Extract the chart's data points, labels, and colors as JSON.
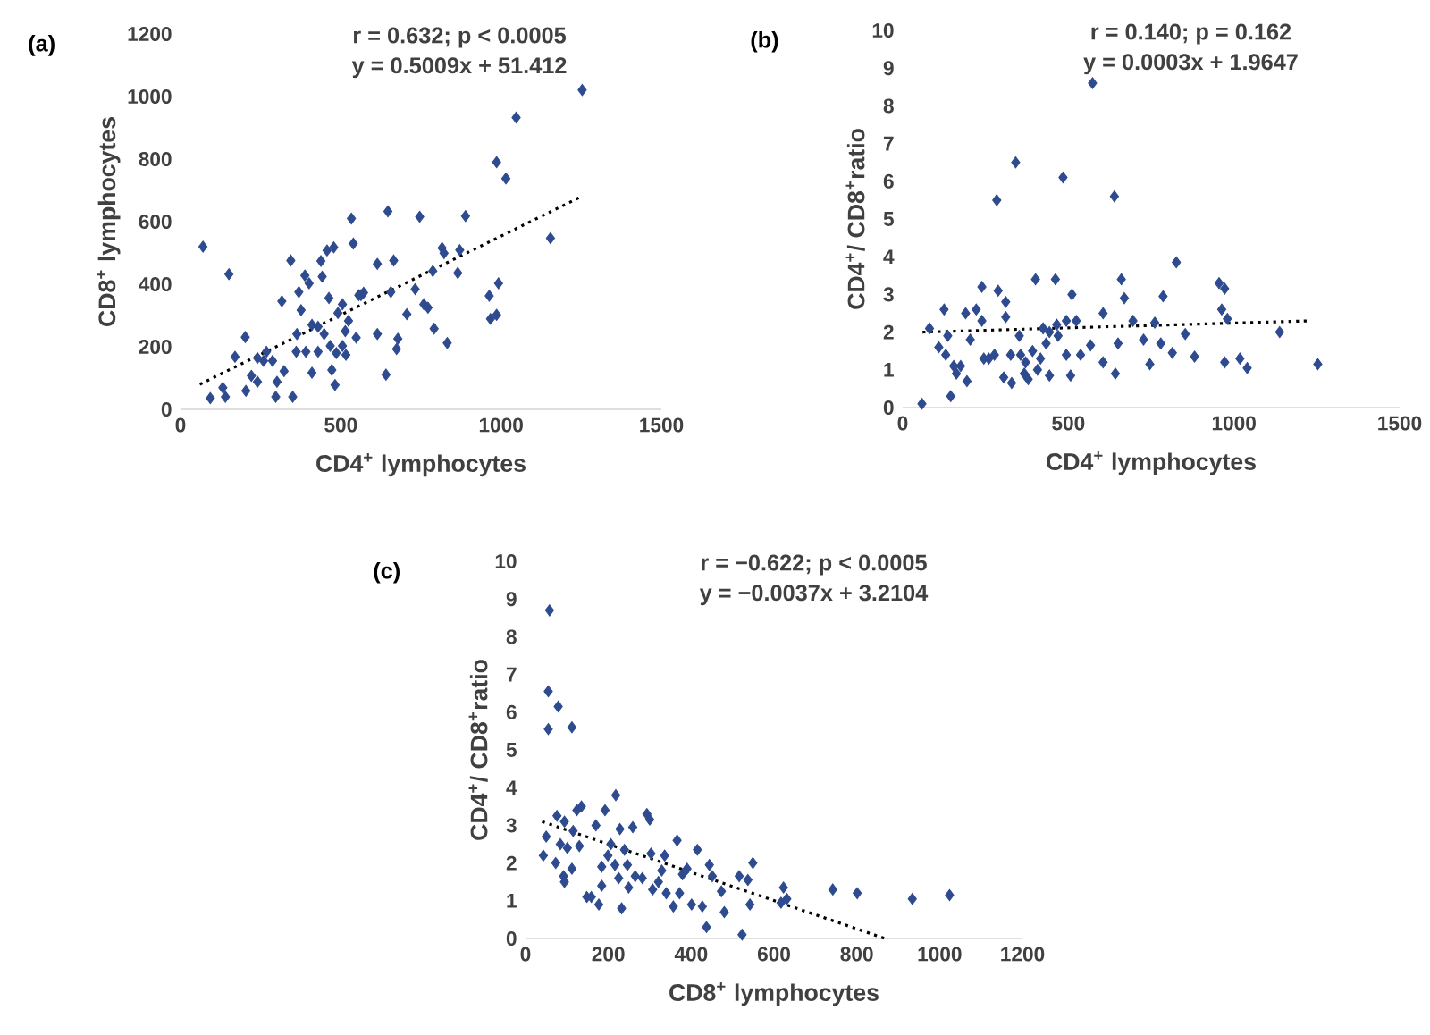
{
  "chart_data": [
    {
      "type": "scatter",
      "title": "(a)",
      "xlabel": "CD4$^{+}$ lymphocytes",
      "ylabel": "CD8$^{+}$ lymphocytes",
      "annotations": [
        "r = 0.632;  p < 0.0005",
        "y = 0.5009x + 51.412"
      ],
      "xlim": [
        0,
        1500
      ],
      "ylim": [
        0,
        1200
      ],
      "xticks": [
        0,
        500,
        1000,
        1500
      ],
      "yticks": [
        0,
        200,
        400,
        600,
        800,
        1000,
        1200
      ],
      "marker": "diamond",
      "series": [
        {
          "color": "#2f4b8f",
          "x": [
            70,
            151,
            93,
            132,
            140,
            170,
            202,
            204,
            221,
            240,
            259,
            268,
            297,
            301,
            316,
            323,
            344,
            350,
            361,
            369,
            376,
            388,
            401,
            410,
            429,
            438,
            442,
            457,
            463,
            478,
            482,
            472,
            491,
            505,
            516,
            533,
            539,
            548,
            556,
            571,
            614,
            614,
            641,
            647,
            656,
            665,
            674,
            678,
            706,
            732,
            746,
            759,
            772,
            787,
            791,
            832,
            816,
            822,
            865,
            871,
            889,
            963,
            967,
            986,
            992,
            986,
            1015,
            1047,
            1154,
            1253,
            410,
            448,
            467,
            486,
            505,
            514,
            429,
            391,
            363,
            240,
            287,
            524,
            563
          ],
          "values": [
            520,
            432,
            36,
            69,
            40,
            168,
            231,
            59,
            107,
            88,
            155,
            184,
            40,
            88,
            346,
            122,
            476,
            40,
            184,
            375,
            317,
            428,
            403,
            117,
            264,
            474,
            424,
            508,
            356,
            518,
            78,
            126,
            308,
            336,
            174,
            610,
            530,
            229,
            365,
            373,
            241,
            465,
            111,
            633,
            375,
            476,
            193,
            226,
            304,
            384,
            616,
            336,
            325,
            442,
            258,
            212,
            516,
            499,
            436,
            509,
            618,
            363,
            289,
            302,
            403,
            790,
            738,
            933,
            547,
            1021,
            270,
            241,
            203,
            180,
            203,
            250,
            184,
            184,
            241,
            164,
            155,
            283,
            365
          ]
        },
        {
          "type": "line",
          "color": "#000000",
          "line_style": "dotted",
          "marker": "none",
          "x": [
            60,
            1250
          ],
          "values": [
            80,
            680
          ]
        }
      ]
    },
    {
      "type": "scatter",
      "title": "(b)",
      "xlabel": "CD4$^{+}$ lymphocytes",
      "ylabel": "CD4$^{+}$/ CD8$^{+}$ratio",
      "annotations": [
        "r = 0.140;  p = 0.162",
        "y = 0.0003x + 1.9647"
      ],
      "xlim": [
        0,
        1500
      ],
      "ylim": [
        0,
        10
      ],
      "xticks": [
        0,
        500,
        1000,
        1500
      ],
      "yticks": [
        0,
        1,
        2,
        3,
        4,
        5,
        6,
        7,
        8,
        9,
        10
      ],
      "marker": "diamond",
      "series": [
        {
          "color": "#2f4b8f",
          "x": [
            58,
            81,
            125,
            109,
            130,
            136,
            145,
            154,
            162,
            175,
            194,
            190,
            204,
            222,
            239,
            245,
            239,
            260,
            277,
            284,
            288,
            311,
            311,
            305,
            329,
            326,
            341,
            352,
            356,
            367,
            371,
            379,
            392,
            401,
            407,
            416,
            424,
            433,
            443,
            443,
            461,
            465,
            469,
            484,
            494,
            494,
            511,
            507,
            524,
            537,
            567,
            573,
            605,
            605,
            639,
            642,
            650,
            660,
            669,
            695,
            727,
            746,
            761,
            779,
            786,
            814,
            826,
            853,
            881,
            955,
            963,
            972,
            980,
            972,
            1018,
            1040,
            1138,
            1253
          ],
          "values": [
            0.1,
            2.1,
            2.6,
            1.6,
            1.4,
            1.9,
            0.3,
            1.1,
            0.9,
            1.1,
            0.7,
            2.5,
            1.8,
            2.6,
            3.2,
            1.3,
            2.3,
            1.3,
            1.4,
            5.5,
            3.1,
            2.8,
            2.4,
            0.8,
            0.65,
            1.4,
            6.5,
            1.9,
            1.4,
            0.9,
            1.2,
            0.75,
            1.5,
            3.4,
            1.0,
            1.3,
            2.1,
            1.7,
            0.85,
            2.0,
            3.4,
            2.2,
            1.9,
            6.1,
            2.3,
            1.4,
            3.0,
            0.85,
            2.3,
            1.4,
            1.65,
            8.6,
            2.5,
            1.2,
            5.6,
            0.9,
            1.7,
            3.4,
            2.9,
            2.3,
            1.8,
            1.15,
            2.25,
            1.7,
            2.95,
            1.45,
            3.85,
            1.95,
            1.35,
            3.3,
            2.6,
            3.15,
            2.35,
            1.2,
            1.3,
            1.05,
            2.0,
            1.15
          ]
        },
        {
          "type": "line",
          "color": "#000000",
          "line_style": "dotted",
          "marker": "none",
          "x": [
            60,
            1230
          ],
          "values": [
            2.0,
            2.3
          ]
        }
      ]
    },
    {
      "type": "scatter",
      "title": "(c)",
      "xlabel": "CD8$^{+}$ lymphocytes",
      "ylabel": "CD4$^{+}$/ CD8$^{+}$ratio",
      "annotations": [
        "r = −0.622;  p < 0.0005",
        "y = −0.0037x + 3.2104"
      ],
      "xlim": [
        0,
        1200
      ],
      "ylim": [
        0,
        10
      ],
      "xticks": [
        0,
        200,
        400,
        600,
        800,
        1000,
        1200
      ],
      "yticks": [
        0,
        1,
        2,
        3,
        4,
        5,
        6,
        7,
        8,
        9,
        10
      ],
      "marker": "diamond",
      "series": [
        {
          "color": "#2f4b8f",
          "x": [
            43,
            50,
            55,
            58,
            55,
            73,
            76,
            79,
            84,
            92,
            94,
            101,
            94,
            112,
            112,
            115,
            124,
            135,
            130,
            148,
            159,
            170,
            177,
            184,
            184,
            192,
            199,
            206,
            218,
            216,
            225,
            228,
            232,
            239,
            246,
            249,
            259,
            265,
            282,
            293,
            300,
            303,
            307,
            321,
            329,
            336,
            340,
            357,
            366,
            372,
            379,
            390,
            401,
            415,
            427,
            437,
            444,
            451,
            473,
            480,
            516,
            523,
            537,
            549,
            542,
            617,
            623,
            631,
            742,
            801,
            934,
            1024
          ],
          "values": [
            2.2,
            2.7,
            6.55,
            8.7,
            5.55,
            2.0,
            3.25,
            6.15,
            2.5,
            1.65,
            3.1,
            2.4,
            1.5,
            5.6,
            1.85,
            2.85,
            3.4,
            3.5,
            2.45,
            1.1,
            1.1,
            3.0,
            0.9,
            1.4,
            1.9,
            3.4,
            2.2,
            2.5,
            3.8,
            1.95,
            1.6,
            2.9,
            0.8,
            2.35,
            1.95,
            1.35,
            2.95,
            1.65,
            1.6,
            3.3,
            3.15,
            2.25,
            1.3,
            1.5,
            1.8,
            2.2,
            1.2,
            0.85,
            2.6,
            1.2,
            1.7,
            1.85,
            0.9,
            2.35,
            0.85,
            0.3,
            1.95,
            1.65,
            1.25,
            0.7,
            1.65,
            0.1,
            1.55,
            2.0,
            0.9,
            0.95,
            1.35,
            1.05,
            1.3,
            1.2,
            1.05,
            1.15
          ]
        },
        {
          "type": "line",
          "color": "#000000",
          "line_style": "dotted",
          "marker": "none",
          "x": [
            40,
            868
          ],
          "values": [
            3.1,
            0.0
          ]
        }
      ]
    }
  ]
}
